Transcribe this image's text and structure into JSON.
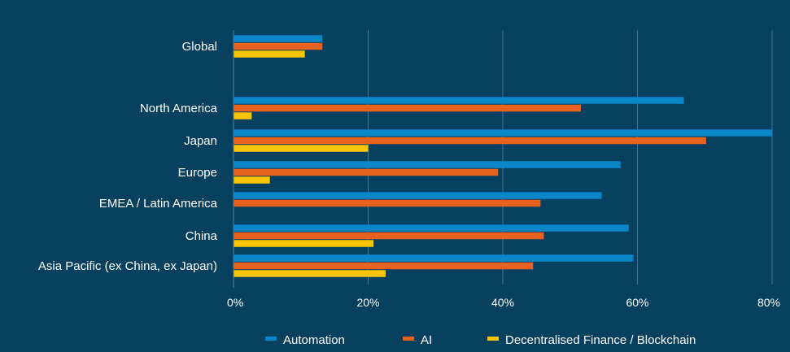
{
  "chart_data": {
    "type": "bar",
    "orientation": "horizontal",
    "categories": [
      "Global",
      "North America",
      "Japan",
      "Europe",
      "EMEA / Latin America",
      "China",
      "Asia Pacific (ex China, ex Japan)"
    ],
    "series": [
      {
        "name": "Automation",
        "color": "#0a86c9",
        "values": [
          13.2,
          66.9,
          80.0,
          57.5,
          54.7,
          58.7,
          59.4
        ]
      },
      {
        "name": "AI",
        "color": "#e8621f",
        "values": [
          13.2,
          51.6,
          70.2,
          39.3,
          45.6,
          46.1,
          44.5
        ]
      },
      {
        "name": "Decentralised Finance / Blockchain",
        "color": "#f7c600",
        "values": [
          10.6,
          2.7,
          20.0,
          5.4,
          0,
          20.8,
          22.6
        ]
      }
    ],
    "xlim": [
      0,
      80
    ],
    "xticks": [
      0,
      20,
      40,
      60,
      80
    ],
    "xtick_labels": [
      "0%",
      "20%",
      "40%",
      "60%",
      "80%"
    ],
    "grid": true,
    "legend_position": "bottom"
  }
}
